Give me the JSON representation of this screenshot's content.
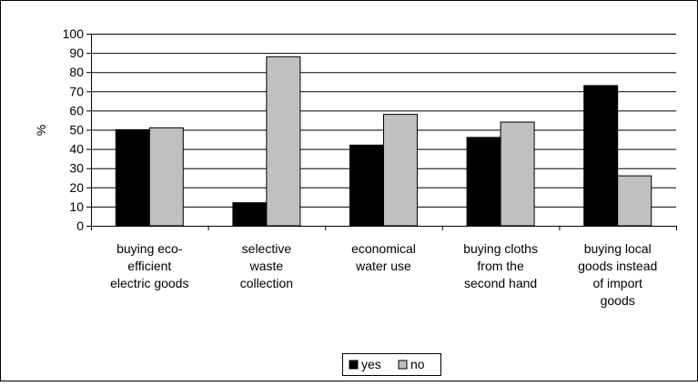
{
  "chart_data": {
    "type": "bar",
    "title": "",
    "xlabel": "",
    "ylabel": "%",
    "ylim": [
      0,
      100
    ],
    "yticks": [
      "0",
      "10",
      "20",
      "30",
      "40",
      "50",
      "60",
      "70",
      "80",
      "90",
      "100"
    ],
    "grid": true,
    "legend_position": "bottom",
    "categories": [
      "buying eco-efficient electric goods",
      "selective waste collection",
      "economical water use",
      "buying cloths from the second hand",
      "buying local goods instead of import goods"
    ],
    "category_label_lines": [
      [
        "buying eco-",
        "efficient",
        "electric goods"
      ],
      [
        "selective",
        "waste",
        "collection"
      ],
      [
        "economical",
        "water use"
      ],
      [
        "buying cloths",
        "from the",
        "second hand"
      ],
      [
        "buying local",
        "goods instead",
        "of import",
        "goods"
      ]
    ],
    "series": [
      {
        "name": "yes",
        "color": "#000000",
        "values": [
          50,
          12,
          42,
          46,
          73
        ]
      },
      {
        "name": "no",
        "color": "#c0c0c0",
        "values": [
          51,
          88,
          58,
          54,
          26
        ]
      }
    ]
  }
}
